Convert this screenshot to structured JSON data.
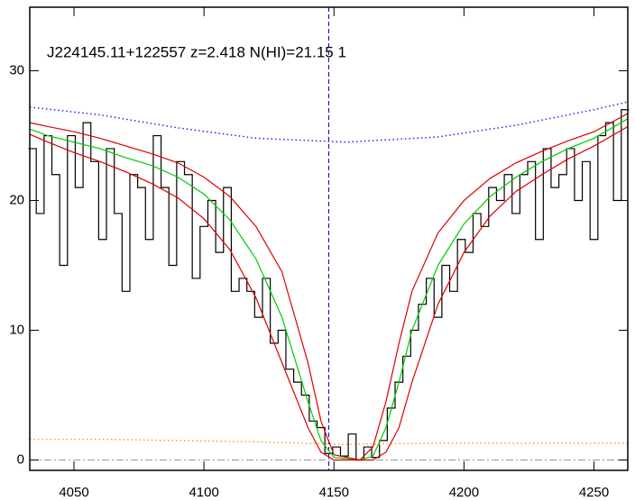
{
  "chart_data": {
    "type": "line",
    "title": "J224145.11+122557 z=2.418 N(HI)=21.15 1",
    "xlim": [
      4033,
      4263
    ],
    "ylim": [
      -0.8,
      34.9
    ],
    "xticks": [
      4050,
      4100,
      4150,
      4200,
      4250
    ],
    "yticks": [
      0,
      10,
      20,
      30
    ],
    "hline": 0,
    "hline_color": "#999999",
    "vline": 4148,
    "vline_color": "#0000cc",
    "series": [
      {
        "color": "#000000",
        "style": "step",
        "x": [
          4034,
          4037,
          4040,
          4043,
          4046,
          4049,
          4052,
          4055,
          4058,
          4061,
          4064,
          4067,
          4070,
          4073,
          4076,
          4079,
          4082,
          4085,
          4088,
          4091,
          4094,
          4097,
          4100,
          4103,
          4106,
          4109,
          4112,
          4115,
          4118,
          4121,
          4124,
          4127,
          4130,
          4133,
          4136,
          4139,
          4142,
          4145,
          4148,
          4151,
          4154,
          4157,
          4160,
          4163,
          4166,
          4169,
          4172,
          4175,
          4178,
          4181,
          4184,
          4187,
          4190,
          4193,
          4196,
          4199,
          4202,
          4205,
          4208,
          4211,
          4214,
          4217,
          4220,
          4223,
          4226,
          4229,
          4232,
          4235,
          4238,
          4241,
          4244,
          4247,
          4250,
          4253,
          4256,
          4259,
          4262
        ],
        "values": [
          24,
          19,
          25,
          22,
          15,
          25,
          21,
          26,
          23,
          17,
          24,
          19,
          13,
          22,
          21,
          17,
          25,
          21,
          15,
          23,
          22,
          14,
          18,
          20,
          16,
          21,
          13,
          14,
          13,
          11,
          14,
          9,
          10,
          7,
          6,
          5,
          3,
          2.5,
          0.5,
          1,
          0.3,
          2,
          0,
          1,
          0.2,
          1.5,
          4,
          6,
          8,
          10,
          12,
          14,
          11,
          15,
          13,
          17,
          16,
          19,
          18,
          21,
          20,
          22,
          19,
          22,
          23,
          17,
          24,
          21,
          22,
          24,
          20,
          23,
          17,
          25,
          26,
          20,
          27
        ]
      },
      {
        "color": "#00cc00",
        "style": "solid",
        "x": [
          4033,
          4040,
          4050,
          4060,
          4070,
          4080,
          4090,
          4100,
          4110,
          4120,
          4130,
          4140,
          4145,
          4150,
          4160,
          4165,
          4170,
          4175,
          4180,
          4190,
          4200,
          4210,
          4220,
          4230,
          4240,
          4250,
          4263
        ],
        "values": [
          25.5,
          25,
          24.5,
          24,
          23.3,
          22.7,
          21.8,
          20.5,
          18.5,
          15.5,
          11,
          4.5,
          1.5,
          0.2,
          0,
          0.3,
          2.5,
          6,
          10,
          15,
          18.2,
          20.3,
          21.8,
          23,
          24,
          24.8,
          26.3
        ]
      },
      {
        "color": "#dd0000",
        "style": "solid",
        "x": [
          4033,
          4040,
          4050,
          4060,
          4070,
          4080,
          4090,
          4100,
          4110,
          4120,
          4130,
          4140,
          4145,
          4150,
          4160,
          4165,
          4170,
          4175,
          4180,
          4190,
          4200,
          4210,
          4220,
          4230,
          4240,
          4250,
          4263
        ],
        "values": [
          26,
          25.7,
          25.3,
          24.8,
          24.2,
          23.6,
          22.9,
          21.8,
          20.3,
          18,
          14.5,
          7.5,
          3,
          0.4,
          0,
          1,
          4.5,
          9,
          13,
          17.5,
          20,
          21.7,
          22.9,
          23.8,
          24.6,
          25.3,
          26.7
        ]
      },
      {
        "color": "#dd0000",
        "style": "solid",
        "x": [
          4033,
          4040,
          4050,
          4060,
          4070,
          4080,
          4090,
          4100,
          4110,
          4120,
          4130,
          4140,
          4145,
          4150,
          4155,
          4160,
          4165,
          4170,
          4175,
          4180,
          4190,
          4200,
          4210,
          4220,
          4230,
          4240,
          4250,
          4263
        ],
        "values": [
          25.1,
          24.5,
          23.7,
          23,
          22.2,
          21.3,
          20.2,
          18.6,
          16.2,
          12.5,
          7.5,
          2.5,
          0.6,
          0,
          0,
          0,
          0,
          0.6,
          2.5,
          6,
          12,
          16,
          18.8,
          20.7,
          22,
          23.2,
          24.2,
          25.7
        ]
      },
      {
        "color": "#6600ff",
        "style": "dotted",
        "x": [
          4033,
          4060,
          4090,
          4120,
          4155,
          4190,
          4220,
          4250,
          4263
        ],
        "values": [
          27.2,
          26.6,
          25.6,
          24.8,
          24.5,
          24.9,
          25.8,
          27,
          27.6
        ]
      },
      {
        "color": "#ff9933",
        "style": "dotted",
        "x": [
          4033,
          4060,
          4090,
          4120,
          4155,
          4190,
          4220,
          4250,
          4263
        ],
        "values": [
          1.6,
          1.6,
          1.5,
          1.4,
          1.2,
          1.3,
          1.3,
          1.3,
          1.3
        ]
      }
    ]
  }
}
